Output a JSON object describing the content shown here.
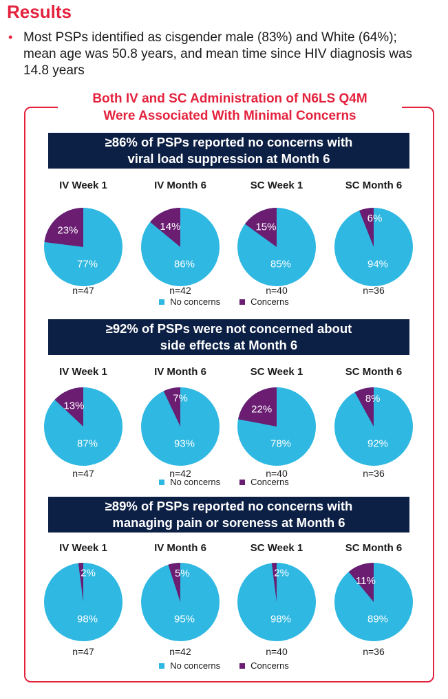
{
  "header": {
    "title": "Results",
    "bullet": "Most PSPs identified as cisgender male (83%) and White (64%); mean age was 50.8 years, and mean time since HIV diagnosis was 14.8 years"
  },
  "section_heading": {
    "line1": "Both IV and SC Administration of N6LS Q4M",
    "line2": "Were Associated With Minimal Concerns"
  },
  "colors": {
    "no_concerns": "#2fb8e2",
    "concerns": "#6a1d71"
  },
  "legend": {
    "no_concerns": "No concerns",
    "concerns": "Concerns"
  },
  "chart_data": [
    {
      "type": "pie",
      "title_line1": "≥86% of PSPs reported no concerns with",
      "title_line2": "viral load suppression at Month 6",
      "pies": [
        {
          "label": "IV Week 1",
          "n": "n=47",
          "no_concerns": 77,
          "concerns": 23
        },
        {
          "label": "IV Month 6",
          "n": "n=42",
          "no_concerns": 86,
          "concerns": 14
        },
        {
          "label": "SC Week 1",
          "n": "n=40",
          "no_concerns": 85,
          "concerns": 15
        },
        {
          "label": "SC Month 6",
          "n": "n=36",
          "no_concerns": 94,
          "concerns": 6
        }
      ]
    },
    {
      "type": "pie",
      "title_line1": "≥92% of PSPs were not concerned about",
      "title_line2": "side effects at Month 6",
      "pies": [
        {
          "label": "IV Week 1",
          "n": "n=47",
          "no_concerns": 87,
          "concerns": 13
        },
        {
          "label": "IV Month 6",
          "n": "n=42",
          "no_concerns": 93,
          "concerns": 7
        },
        {
          "label": "SC Week 1",
          "n": "n=40",
          "no_concerns": 78,
          "concerns": 22
        },
        {
          "label": "SC Month 6",
          "n": "n=36",
          "no_concerns": 92,
          "concerns": 8
        }
      ]
    },
    {
      "type": "pie",
      "title_line1": "≥89% of PSPs reported no concerns with",
      "title_line2": "managing pain or soreness at Month 6",
      "pies": [
        {
          "label": "IV Week 1",
          "n": "n=47",
          "no_concerns": 98,
          "concerns": 2
        },
        {
          "label": "IV Month 6",
          "n": "n=42",
          "no_concerns": 95,
          "concerns": 5
        },
        {
          "label": "SC Week 1",
          "n": "n=40",
          "no_concerns": 98,
          "concerns": 2
        },
        {
          "label": "SC Month 6",
          "n": "n=36",
          "no_concerns": 89,
          "concerns": 11
        }
      ]
    }
  ]
}
